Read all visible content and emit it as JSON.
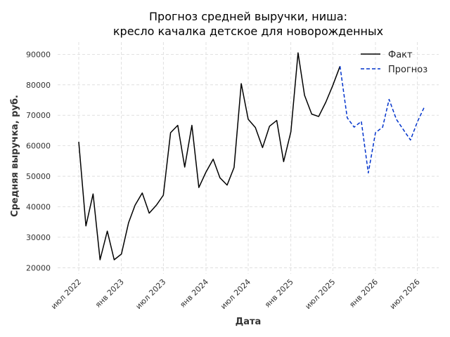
{
  "chart_data": {
    "type": "line",
    "title": "Прогноз средней выручки, ниша:\nкресло качалка детское для новорожденных",
    "xlabel": "Дата",
    "ylabel": "Средняя выручка, руб.",
    "ylim": [
      18000,
      94000
    ],
    "xlim": [
      "2022-04-01",
      "2026-10-01"
    ],
    "grid": true,
    "legend_position": "top-right",
    "y_ticks": [
      20000,
      30000,
      40000,
      50000,
      60000,
      70000,
      80000,
      90000
    ],
    "x_ticks": [
      {
        "date": "2022-07-01",
        "label": "июл 2022"
      },
      {
        "date": "2023-01-01",
        "label": "янв 2023"
      },
      {
        "date": "2023-07-01",
        "label": "июл 2023"
      },
      {
        "date": "2024-01-01",
        "label": "янв 2024"
      },
      {
        "date": "2024-07-01",
        "label": "июл 2024"
      },
      {
        "date": "2025-01-01",
        "label": "янв 2025"
      },
      {
        "date": "2025-07-01",
        "label": "июл 2025"
      },
      {
        "date": "2026-01-01",
        "label": "янв 2026"
      },
      {
        "date": "2026-07-01",
        "label": "июл 2026"
      }
    ],
    "series": [
      {
        "name": "Факт",
        "color": "#000000",
        "style": "solid",
        "points": [
          {
            "x": "2022-07-01",
            "y": 61300
          },
          {
            "x": "2022-08-01",
            "y": 33700
          },
          {
            "x": "2022-09-01",
            "y": 44200
          },
          {
            "x": "2022-10-01",
            "y": 22600
          },
          {
            "x": "2022-11-01",
            "y": 32000
          },
          {
            "x": "2022-12-01",
            "y": 22600
          },
          {
            "x": "2023-01-01",
            "y": 24500
          },
          {
            "x": "2023-02-01",
            "y": 34800
          },
          {
            "x": "2023-03-01",
            "y": 40500
          },
          {
            "x": "2023-04-01",
            "y": 44500
          },
          {
            "x": "2023-05-01",
            "y": 37900
          },
          {
            "x": "2023-06-01",
            "y": 40500
          },
          {
            "x": "2023-07-01",
            "y": 43800
          },
          {
            "x": "2023-08-01",
            "y": 64300
          },
          {
            "x": "2023-09-01",
            "y": 66700
          },
          {
            "x": "2023-10-01",
            "y": 53000
          },
          {
            "x": "2023-11-01",
            "y": 66700
          },
          {
            "x": "2023-12-01",
            "y": 46300
          },
          {
            "x": "2024-01-01",
            "y": 51400
          },
          {
            "x": "2024-02-01",
            "y": 55600
          },
          {
            "x": "2024-03-01",
            "y": 49500
          },
          {
            "x": "2024-04-01",
            "y": 47100
          },
          {
            "x": "2024-05-01",
            "y": 52900
          },
          {
            "x": "2024-06-01",
            "y": 80400
          },
          {
            "x": "2024-07-01",
            "y": 68700
          },
          {
            "x": "2024-08-01",
            "y": 66000
          },
          {
            "x": "2024-09-01",
            "y": 59400
          },
          {
            "x": "2024-10-01",
            "y": 66400
          },
          {
            "x": "2024-11-01",
            "y": 68300
          },
          {
            "x": "2024-12-01",
            "y": 54800
          },
          {
            "x": "2025-01-01",
            "y": 64600
          },
          {
            "x": "2025-02-01",
            "y": 90500
          },
          {
            "x": "2025-03-01",
            "y": 76600
          },
          {
            "x": "2025-04-01",
            "y": 70400
          },
          {
            "x": "2025-05-01",
            "y": 69600
          },
          {
            "x": "2025-06-01",
            "y": 74300
          },
          {
            "x": "2025-07-01",
            "y": 79800
          },
          {
            "x": "2025-08-01",
            "y": 86100
          }
        ]
      },
      {
        "name": "Прогноз",
        "color": "#0033cc",
        "style": "dashed",
        "points": [
          {
            "x": "2025-08-01",
            "y": 86100
          },
          {
            "x": "2025-09-01",
            "y": 69200
          },
          {
            "x": "2025-10-01",
            "y": 66100
          },
          {
            "x": "2025-11-01",
            "y": 68000
          },
          {
            "x": "2025-12-01",
            "y": 51100
          },
          {
            "x": "2026-01-01",
            "y": 64300
          },
          {
            "x": "2026-02-01",
            "y": 66100
          },
          {
            "x": "2026-03-01",
            "y": 75200
          },
          {
            "x": "2026-04-01",
            "y": 68700
          },
          {
            "x": "2026-05-01",
            "y": 65300
          },
          {
            "x": "2026-06-01",
            "y": 61900
          },
          {
            "x": "2026-07-01",
            "y": 67900
          },
          {
            "x": "2026-08-01",
            "y": 72900
          }
        ]
      }
    ]
  }
}
